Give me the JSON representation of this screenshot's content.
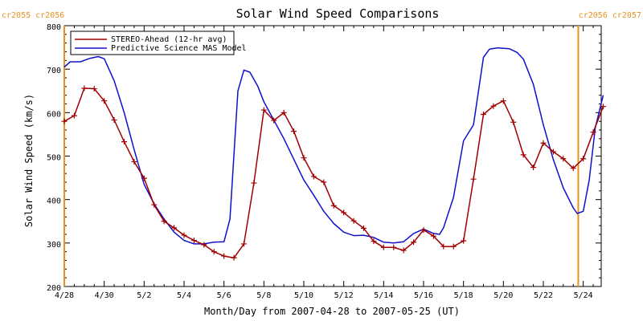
{
  "chart_data": {
    "type": "line",
    "title": "Solar Wind Speed Comparisons",
    "xlabel": "Month/Day from 2007-04-28 to 2007-05-25 (UT)",
    "ylabel": "Solar Wind Speed (km/s)",
    "xlim": [
      "4/28",
      "5/25"
    ],
    "ylim": [
      200,
      800
    ],
    "grid": false,
    "legend_placement": "top-left",
    "x_unit": "days",
    "x_ticks": [
      {
        "x": 0,
        "label": "4/28"
      },
      {
        "x": 2,
        "label": "4/30"
      },
      {
        "x": 4,
        "label": "5/2"
      },
      {
        "x": 6,
        "label": "5/4"
      },
      {
        "x": 8,
        "label": "5/6"
      },
      {
        "x": 10,
        "label": "5/8"
      },
      {
        "x": 12,
        "label": "5/10"
      },
      {
        "x": 14,
        "label": "5/12"
      },
      {
        "x": 16,
        "label": "5/14"
      },
      {
        "x": 18,
        "label": "5/16"
      },
      {
        "x": 20,
        "label": "5/18"
      },
      {
        "x": 22,
        "label": "5/20"
      },
      {
        "x": 24,
        "label": "5/22"
      },
      {
        "x": 26,
        "label": "5/24"
      }
    ],
    "y_ticks": [
      200,
      300,
      400,
      500,
      600,
      700,
      800
    ],
    "markers": [
      {
        "x": 0,
        "labels": [
          "cr2055",
          "cr2056"
        ],
        "color": "#e8921a"
      },
      {
        "x": 25.75,
        "labels": [
          "cr2056",
          "cr2057"
        ],
        "color": "#e8921a"
      }
    ],
    "series": [
      {
        "name": "STEREO-Ahead (12-hr avg)",
        "color": "#a00000",
        "marker": "plus",
        "points": [
          [
            0,
            580
          ],
          [
            0.5,
            593
          ],
          [
            1,
            656
          ],
          [
            1.5,
            655
          ],
          [
            2,
            627
          ],
          [
            2.5,
            583
          ],
          [
            3,
            533
          ],
          [
            3.5,
            487
          ],
          [
            4,
            449
          ],
          [
            4.5,
            388
          ],
          [
            5,
            350
          ],
          [
            5.5,
            335
          ],
          [
            6,
            318
          ],
          [
            6.5,
            306
          ],
          [
            7,
            296
          ],
          [
            7.5,
            280
          ],
          [
            8,
            270
          ],
          [
            8.5,
            266
          ],
          [
            9,
            298
          ],
          [
            9.5,
            438
          ],
          [
            10,
            606
          ],
          [
            10.5,
            582
          ],
          [
            11,
            600
          ],
          [
            11.5,
            557
          ],
          [
            12,
            496
          ],
          [
            12.5,
            453
          ],
          [
            13,
            440
          ],
          [
            13.5,
            386
          ],
          [
            14,
            370
          ],
          [
            14.5,
            351
          ],
          [
            15,
            334
          ],
          [
            15.5,
            304
          ],
          [
            16,
            290
          ],
          [
            16.5,
            290
          ],
          [
            17,
            283
          ],
          [
            17.5,
            302
          ],
          [
            18,
            330
          ],
          [
            18.5,
            316
          ],
          [
            19,
            292
          ],
          [
            19.5,
            292
          ],
          [
            20,
            305
          ],
          [
            20.5,
            447
          ],
          [
            21,
            596
          ],
          [
            21.5,
            615
          ],
          [
            22,
            627
          ],
          [
            22.5,
            578
          ],
          [
            23,
            503
          ],
          [
            23.5,
            474
          ],
          [
            24,
            530
          ],
          [
            24.5,
            510
          ],
          [
            25,
            494
          ],
          [
            25.5,
            472
          ],
          [
            26,
            494
          ],
          [
            26.5,
            555
          ],
          [
            27,
            614
          ]
        ]
      },
      {
        "name": "Predictive Science MAS Model",
        "color": "#1010cc",
        "marker": "none",
        "points": [
          [
            0,
            705
          ],
          [
            0.3,
            717
          ],
          [
            0.8,
            717
          ],
          [
            1.3,
            725
          ],
          [
            1.7,
            729
          ],
          [
            2,
            724
          ],
          [
            2.5,
            673
          ],
          [
            3,
            600
          ],
          [
            3.5,
            515
          ],
          [
            4,
            435
          ],
          [
            4.5,
            390
          ],
          [
            5,
            355
          ],
          [
            5.5,
            325
          ],
          [
            6,
            306
          ],
          [
            6.5,
            298
          ],
          [
            7,
            298
          ],
          [
            7.5,
            302
          ],
          [
            8,
            303
          ],
          [
            8.3,
            355
          ],
          [
            8.7,
            650
          ],
          [
            9,
            698
          ],
          [
            9.3,
            693
          ],
          [
            9.7,
            660
          ],
          [
            10,
            625
          ],
          [
            11,
            540
          ],
          [
            12,
            445
          ],
          [
            12.5,
            410
          ],
          [
            13,
            373
          ],
          [
            13.5,
            345
          ],
          [
            14,
            325
          ],
          [
            14.5,
            317
          ],
          [
            15,
            318
          ],
          [
            15.5,
            313
          ],
          [
            16,
            302
          ],
          [
            16.5,
            300
          ],
          [
            17,
            303
          ],
          [
            17.5,
            322
          ],
          [
            18,
            332
          ],
          [
            18.5,
            322
          ],
          [
            18.8,
            320
          ],
          [
            19,
            335
          ],
          [
            19.5,
            405
          ],
          [
            20,
            535
          ],
          [
            20.5,
            572
          ],
          [
            21,
            727
          ],
          [
            21.3,
            746
          ],
          [
            21.7,
            749
          ],
          [
            22.3,
            747
          ],
          [
            22.7,
            738
          ],
          [
            23,
            723
          ],
          [
            23.5,
            665
          ],
          [
            24,
            572
          ],
          [
            24.5,
            492
          ],
          [
            25,
            427
          ],
          [
            25.5,
            381
          ],
          [
            25.7,
            368
          ],
          [
            26,
            373
          ],
          [
            26.3,
            445
          ],
          [
            26.6,
            565
          ],
          [
            27,
            640
          ]
        ]
      }
    ]
  }
}
